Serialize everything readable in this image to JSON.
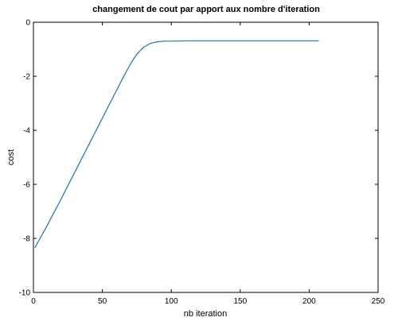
{
  "chart_data": {
    "type": "line",
    "title": "changement de cout par apport aux nombre d'iteration",
    "xlabel": "nb iteration",
    "ylabel": "cost",
    "xlim": [
      0,
      250
    ],
    "ylim": [
      -10,
      0
    ],
    "xticks": [
      0,
      50,
      100,
      150,
      200,
      250
    ],
    "yticks": [
      0,
      -2,
      -4,
      -6,
      -8,
      -10
    ],
    "xtick_labels": [
      "0",
      "50",
      "100",
      "150",
      "200",
      "250"
    ],
    "ytick_labels": [
      "0",
      "-2",
      "-4",
      "-6",
      "-8",
      "-10"
    ],
    "grid": false,
    "line_color": "#1f77b4",
    "series": [
      {
        "x": [
          1,
          10,
          20,
          30,
          40,
          50,
          55,
          60,
          65,
          70,
          75,
          80,
          85,
          90,
          95,
          100,
          110,
          120,
          150,
          180,
          207
        ],
        "y": [
          -8.35,
          -7.52,
          -6.55,
          -5.55,
          -4.55,
          -3.55,
          -3.05,
          -2.55,
          -2.05,
          -1.58,
          -1.18,
          -0.92,
          -0.78,
          -0.72,
          -0.7,
          -0.7,
          -0.69,
          -0.69,
          -0.69,
          -0.69,
          -0.69
        ]
      }
    ]
  }
}
